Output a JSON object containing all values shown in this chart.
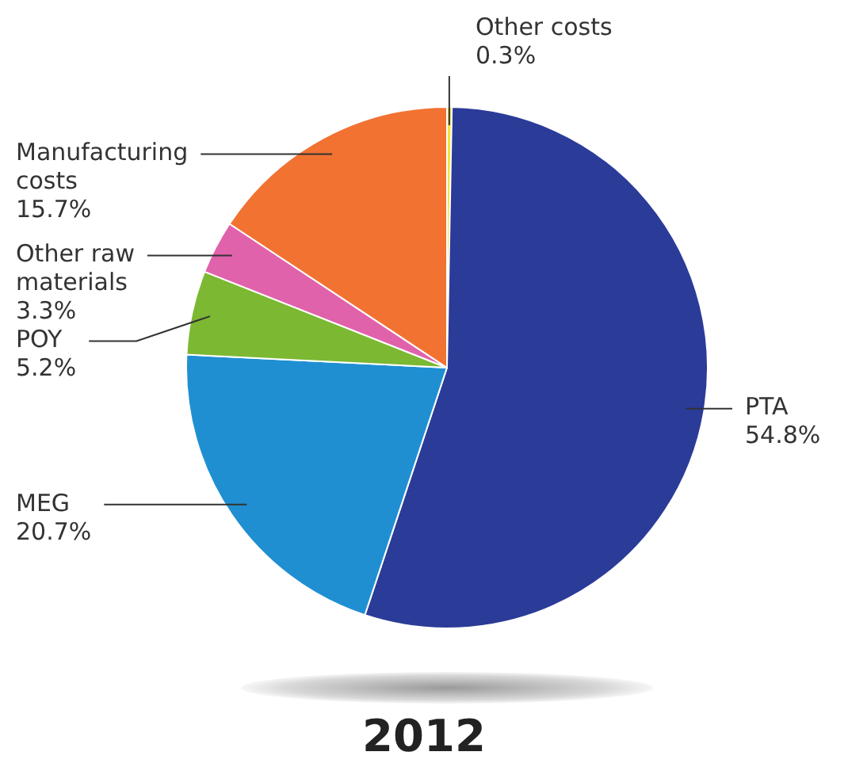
{
  "chart_data": {
    "type": "pie",
    "title": "2012",
    "categories": [
      "Other costs",
      "PTA",
      "MEG",
      "POY",
      "Other raw materials",
      "Manufacturing costs"
    ],
    "values": [
      0.3,
      54.8,
      20.7,
      5.2,
      3.3,
      15.7
    ],
    "value_labels": [
      "0.3%",
      "54.8%",
      "20.7%",
      "5.2%",
      "3.3%",
      "15.7%"
    ],
    "colors": [
      "#f2e23a",
      "#2b3b98",
      "#1f8fd2",
      "#7cb832",
      "#e062aa",
      "#f27232"
    ],
    "legend": false
  }
}
